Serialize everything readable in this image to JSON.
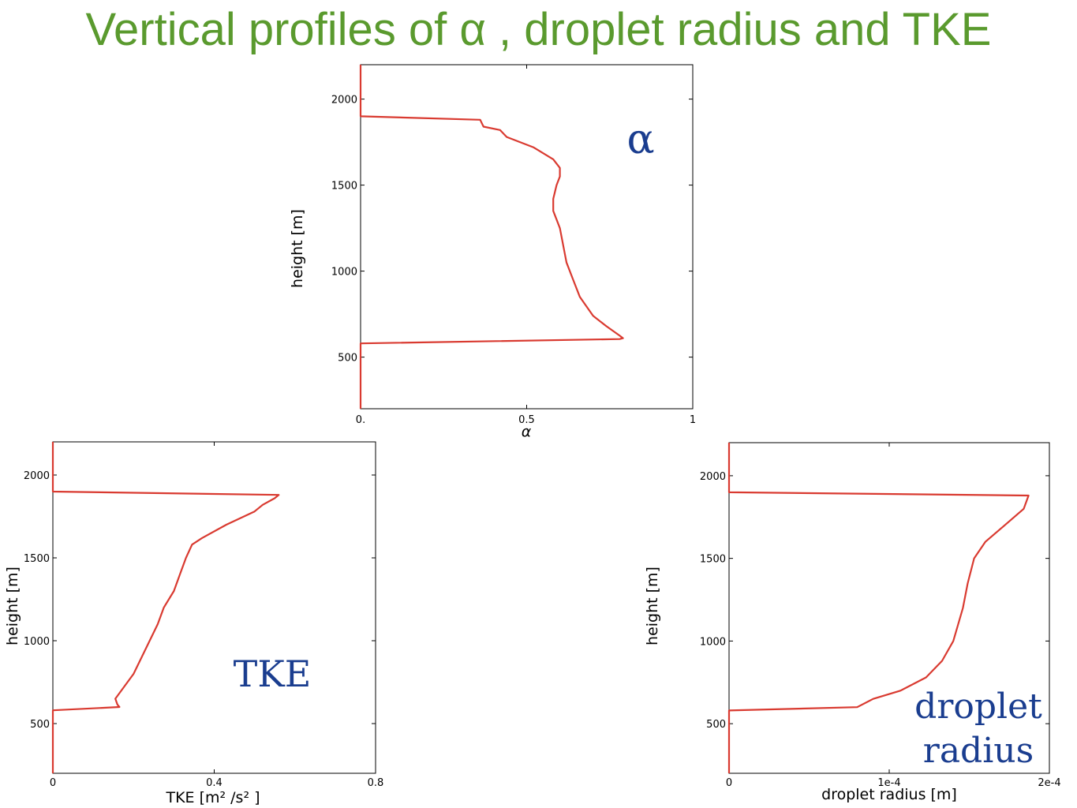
{
  "title": "Vertical profiles of α , droplet radius and TKE",
  "colors": {
    "title": "#5a9a2e",
    "line": "#d93a30",
    "annotation": "#1a3d8f"
  },
  "chart_data": [
    {
      "id": "alpha",
      "type": "line",
      "xlabel": "α",
      "ylabel": "height [m]",
      "annotation": [
        "α"
      ],
      "xlim": [
        0,
        1
      ],
      "ylim": [
        200,
        2200
      ],
      "xticks": [
        0,
        0.5,
        1
      ],
      "xtick_labels": [
        "0.",
        "0.5",
        "1"
      ],
      "yticks": [
        500,
        1000,
        1500,
        2000
      ],
      "ytick_labels": [
        "500",
        "1000",
        "1500",
        "2000"
      ],
      "grid": false,
      "series": [
        {
          "x": [
            0,
            0,
            0.78,
            0.79,
            0.78,
            0.74,
            0.7,
            0.66,
            0.64,
            0.62,
            0.61,
            0.6,
            0.59,
            0.58,
            0.58,
            0.59,
            0.6,
            0.6,
            0.58,
            0.52,
            0.44,
            0.42,
            0.37,
            0.36,
            0,
            0
          ],
          "y": [
            200,
            580,
            605,
            610,
            625,
            680,
            740,
            850,
            950,
            1050,
            1150,
            1250,
            1300,
            1350,
            1420,
            1500,
            1550,
            1600,
            1650,
            1720,
            1780,
            1820,
            1840,
            1880,
            1900,
            2200
          ]
        }
      ]
    },
    {
      "id": "tke",
      "type": "line",
      "xlabel": "TKE [m² /s² ]",
      "ylabel": "height [m]",
      "annotation": [
        "TKE"
      ],
      "xlim": [
        0,
        0.8
      ],
      "ylim": [
        200,
        2200
      ],
      "xticks": [
        0,
        0.4,
        0.8
      ],
      "xtick_labels": [
        "0",
        "0.4",
        "0.8"
      ],
      "yticks": [
        500,
        1000,
        1500,
        2000
      ],
      "ytick_labels": [
        "500",
        "1000",
        "1500",
        "2000"
      ],
      "grid": false,
      "series": [
        {
          "x": [
            0,
            0,
            0.165,
            0.16,
            0.155,
            0.17,
            0.2,
            0.22,
            0.24,
            0.26,
            0.275,
            0.3,
            0.315,
            0.33,
            0.345,
            0.37,
            0.43,
            0.5,
            0.52,
            0.55,
            0.56,
            0,
            0
          ],
          "y": [
            200,
            580,
            600,
            615,
            650,
            700,
            800,
            900,
            1000,
            1100,
            1200,
            1300,
            1400,
            1500,
            1580,
            1620,
            1700,
            1780,
            1820,
            1860,
            1880,
            1900,
            2200
          ]
        }
      ]
    },
    {
      "id": "droplet",
      "type": "line",
      "xlabel": "droplet radius [m]",
      "ylabel": "height [m]",
      "annotation": [
        "droplet",
        "radius"
      ],
      "xlim": [
        0,
        0.0002
      ],
      "ylim": [
        200,
        2200
      ],
      "xticks": [
        0,
        0.0001,
        0.0002
      ],
      "xtick_labels": [
        "0",
        "1e-4",
        "2e-4"
      ],
      "yticks": [
        500,
        1000,
        1500,
        2000
      ],
      "ytick_labels": [
        "500",
        "1000",
        "1500",
        "2000"
      ],
      "grid": false,
      "series": [
        {
          "x": [
            0,
            0,
            8e-05,
            9e-05,
            0.000107,
            0.000123,
            0.000133,
            0.00014,
            0.000143,
            0.000146,
            0.000149,
            0.000153,
            0.00016,
            0.000172,
            0.000184,
            0.000187,
            0,
            0
          ],
          "y": [
            200,
            580,
            600,
            650,
            700,
            780,
            880,
            1000,
            1100,
            1200,
            1350,
            1500,
            1600,
            1700,
            1800,
            1880,
            1900,
            2200
          ]
        }
      ]
    }
  ]
}
